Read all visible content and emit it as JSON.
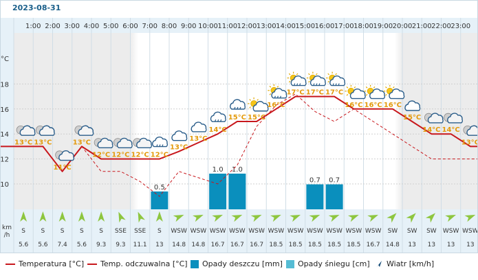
{
  "date": "2023-08-31",
  "y_unit": "°C",
  "wind_unit_line1": "km",
  "wind_unit_line2": "/h",
  "legend": {
    "temperature": "Temperatura [°C]",
    "feels_like": "Temp. odczuwalna [°C]",
    "rain": "Opady deszczu [mm]",
    "snow": "Opady śniegu [cm]",
    "wind": "Wiatr [km/h]"
  },
  "colors": {
    "temperature": "#c8171c",
    "feels_like": "#c8171c",
    "rain": "#0a8fbd",
    "snow": "#55bcd4",
    "wind_arrow": "#8ec63f",
    "temp_label": "#e39a0c",
    "night_band": "#ececec",
    "day_band": "#ffffff",
    "header_band": "#e6f1f8",
    "wind_band": "#e6f1f8"
  },
  "chart_data": {
    "type": "line",
    "hours": [
      "1:00",
      "2:00",
      "3:00",
      "4:00",
      "5:00",
      "6:00",
      "7:00",
      "8:00",
      "9:00",
      "10:00",
      "11:00",
      "12:00",
      "13:00",
      "14:00",
      "15:00",
      "16:00",
      "17:00",
      "18:00",
      "19:00",
      "20:00",
      "21:00",
      "22:00",
      "23:00"
    ],
    "temperature": [
      13.0,
      13.0,
      11.0,
      13.0,
      12.0,
      12.0,
      12.0,
      12.0,
      12.6,
      13.3,
      14.0,
      15.0,
      15.0,
      16.0,
      17.0,
      17.0,
      17.0,
      16.0,
      16.0,
      16.0,
      15.0,
      14.0,
      14.0,
      13.0
    ],
    "feels_like": [
      13.0,
      13.0,
      11.0,
      13.0,
      11.0,
      11.0,
      10.2,
      9.0,
      11.0,
      10.5,
      10.0,
      11.5,
      14.6,
      16.3,
      17.2,
      15.8,
      15.0,
      16.0,
      15.0,
      14.0,
      13.0,
      12.0,
      12.0,
      12.0
    ],
    "temp_labels": [
      "13°C",
      "13°C",
      "11°C",
      "13°C",
      "12°C",
      "12°C",
      "12°C",
      "12°C",
      "13°C",
      "13°C",
      "14°C",
      "15°C",
      "15°C",
      "16°C",
      "17°C",
      "17°C",
      "17°C",
      "16°C",
      "16°C",
      "16°C",
      "15°C",
      "14°C",
      "14°C",
      "13°C"
    ],
    "icons": [
      "night-cloudy",
      "night-cloudy",
      "night-cloudy",
      "night-cloudy",
      "night-cloudy",
      "night-cloudy",
      "night-cloudy",
      "rain",
      "cloudy",
      "cloudy",
      "rain",
      "rain",
      "sun-cloud",
      "sun-rain",
      "sun-rain",
      "sun-rain",
      "sun-rain",
      "sun-cloud",
      "sun-cloud",
      "sun-cloud",
      "cloudy",
      "night-cloudy",
      "night-cloudy",
      "night-cloudy"
    ],
    "rain_mm": [
      0,
      0,
      0,
      0,
      0,
      0,
      0,
      0.5,
      0,
      0,
      1.0,
      1.0,
      0,
      0,
      0,
      0.7,
      0.7,
      0,
      0,
      0,
      0,
      0,
      0,
      0
    ],
    "rain_labels": [
      "",
      "",
      "",
      "",
      "",
      "",
      "",
      "0.5",
      "",
      "",
      "1.0",
      "1.0",
      "",
      "",
      "",
      "0.7",
      "0.7",
      "",
      "",
      "",
      "",
      "",
      "",
      ""
    ],
    "wind_dir": [
      "S",
      "S",
      "S",
      "S",
      "S",
      "SSE",
      "SSE",
      "S",
      "WSW",
      "WSW",
      "WSW",
      "WSW",
      "WSW",
      "WSW",
      "WSW",
      "WSW",
      "WSW",
      "WSW",
      "WSW",
      "SW",
      "SW",
      "SW",
      "WSW",
      "WSW"
    ],
    "wind_speed": [
      "5.6",
      "5.6",
      "7.4",
      "5.6",
      "9.3",
      "9.3",
      "11.1",
      "13",
      "14.8",
      "14.8",
      "16.7",
      "16.7",
      "16.7",
      "18.5",
      "18.5",
      "18.5",
      "18.5",
      "18.5",
      "16.7",
      "14.8",
      "13",
      "13",
      "13",
      "13"
    ],
    "y_ticks": [
      "10",
      "12",
      "14",
      "16",
      "18"
    ],
    "ylim": [
      8,
      20
    ]
  }
}
